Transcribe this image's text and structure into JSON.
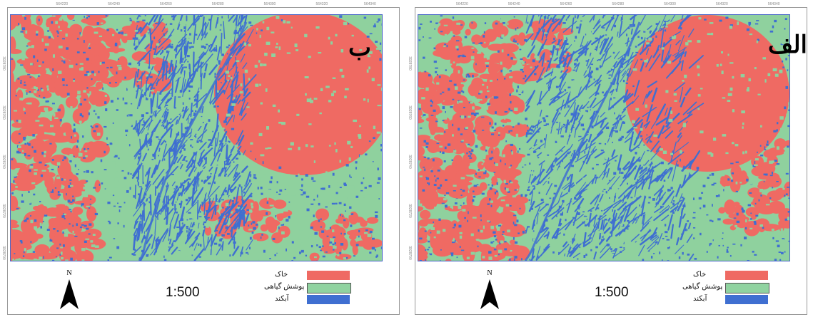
{
  "panels": [
    {
      "letter": "ب",
      "scale": "1:500",
      "north": "N",
      "top_ticks": [
        "564220",
        "564240",
        "564260",
        "564280",
        "564300",
        "564320",
        "564340"
      ],
      "side_ticks": [
        "3928780",
        "3928760",
        "3928740",
        "3928720",
        "3928700"
      ]
    },
    {
      "letter": "الف",
      "scale": "1:500",
      "north": "N",
      "top_ticks": [
        "564220",
        "564240",
        "564260",
        "564280",
        "564300",
        "564320",
        "564340"
      ],
      "side_ticks": [
        "3928780",
        "3928760",
        "3928740",
        "3928720",
        "3928700"
      ]
    }
  ],
  "legend": [
    {
      "label": "خاک",
      "color": "#ef6a63"
    },
    {
      "label": "پوشش گیاهی",
      "color": "#90d3a0"
    },
    {
      "label": "آبکند",
      "color": "#3f6fd1"
    }
  ],
  "colors": {
    "soil": "#ef6a63",
    "vegetation": "#8fd19e",
    "gully": "#3f6fd1"
  }
}
